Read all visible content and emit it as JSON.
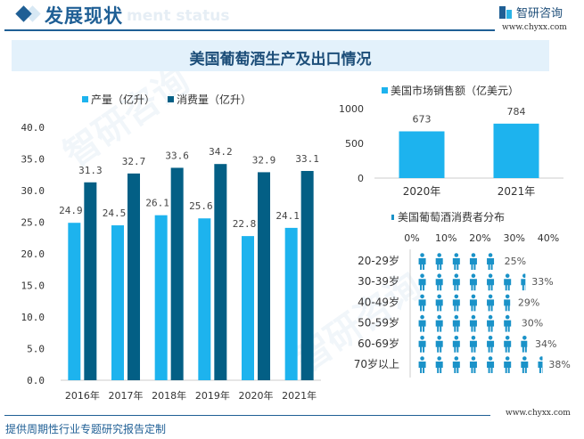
{
  "header": {
    "title": "发展现状",
    "subtitle_watermark": "ment status",
    "brand_name": "智研咨询",
    "brand_url": "www.chyxx.com"
  },
  "banner": {
    "title": "美国葡萄酒生产及出口情况"
  },
  "footer": {
    "text": "提供周期性行业专题研究报告定制",
    "url": "www.chyxx.com"
  },
  "colors": {
    "production": "#1db3ee",
    "consumption": "#035f85",
    "sales": "#1db3ee",
    "person": "#1a92c8",
    "brand_dark": "#1f5f95"
  },
  "chart_data": [
    {
      "type": "bar",
      "title": "",
      "categories": [
        "2016年",
        "2017年",
        "2018年",
        "2019年",
        "2020年",
        "2021年"
      ],
      "series": [
        {
          "name": "产量（亿升）",
          "values": [
            24.9,
            24.5,
            26.1,
            25.6,
            22.8,
            24.1
          ]
        },
        {
          "name": "消费量（亿升）",
          "values": [
            31.3,
            32.7,
            33.6,
            34.2,
            32.9,
            33.1
          ]
        }
      ],
      "yticks": [
        "0.0",
        "5.0",
        "10.0",
        "15.0",
        "20.0",
        "25.0",
        "30.0",
        "35.0",
        "40.0"
      ],
      "ylim": [
        0,
        40
      ],
      "xlabel": "",
      "ylabel": "",
      "legend": "top",
      "grid": false
    },
    {
      "type": "bar",
      "title": "",
      "categories": [
        "2020年",
        "2021年"
      ],
      "series": [
        {
          "name": "美国市场销售额（亿美元）",
          "values": [
            673,
            784
          ]
        }
      ],
      "yticks": [
        "0",
        "500",
        "1000"
      ],
      "ylim": [
        0,
        1000
      ],
      "legend": "top",
      "grid": false
    },
    {
      "type": "bar",
      "title": "美国葡萄酒消费者分布",
      "orientation": "horizontal-pictograph",
      "categories": [
        "20-29岁",
        "30-39岁",
        "40-49岁",
        "50-59岁",
        "60-69岁",
        "70岁以上"
      ],
      "values": [
        25,
        33,
        29,
        30,
        34,
        38
      ],
      "value_labels": [
        "25%",
        "33%",
        "29%",
        "30%",
        "34%",
        "38%"
      ],
      "xticks": [
        "0%",
        "10%",
        "20%",
        "30%",
        "40%"
      ],
      "xlim": [
        0,
        40
      ],
      "unit_per_icon": 5,
      "legend": "top",
      "grid": false
    }
  ]
}
